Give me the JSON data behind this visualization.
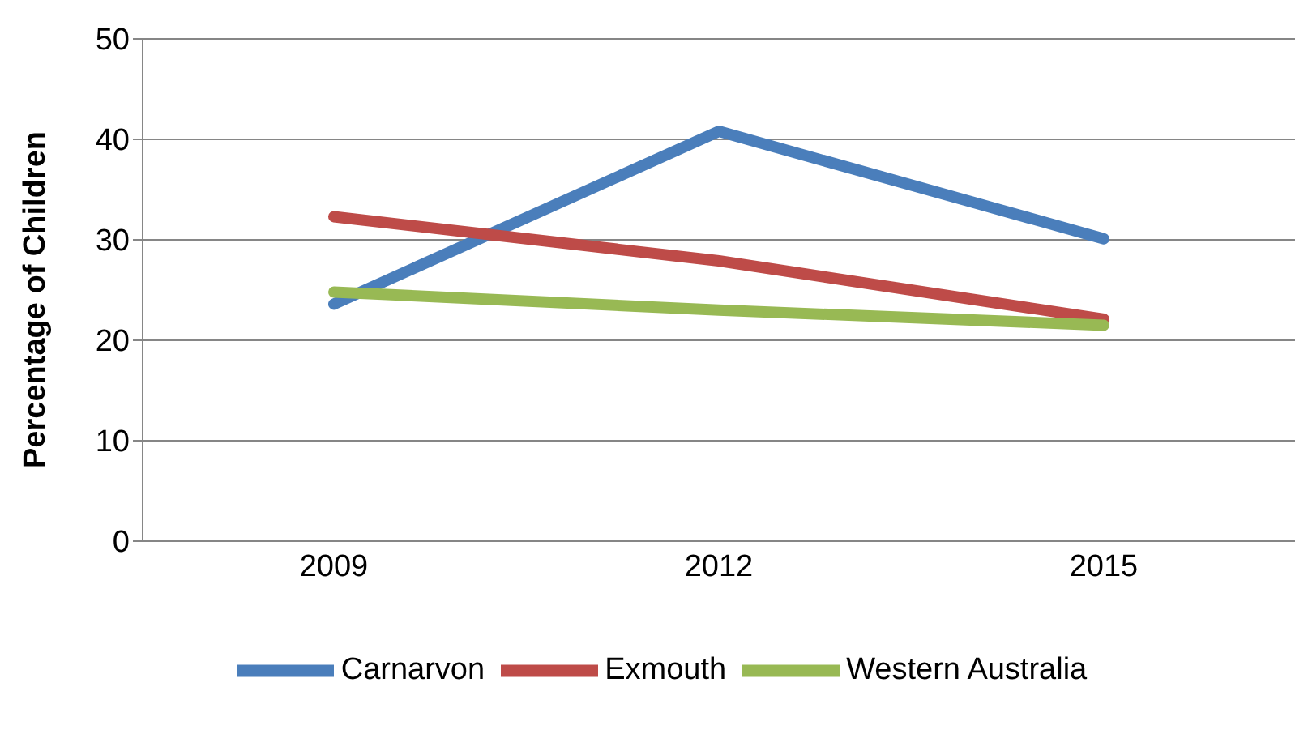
{
  "chart_data": {
    "type": "line",
    "ylabel": "Percentage of Children",
    "categories": [
      "2009",
      "2012",
      "2015"
    ],
    "series": [
      {
        "name": "Carnarvon",
        "color": "#4a7ebb",
        "values": [
          23.6,
          40.8,
          30.1
        ]
      },
      {
        "name": "Exmouth",
        "color": "#be4b48",
        "values": [
          32.3,
          27.9,
          22.1
        ]
      },
      {
        "name": "Western Australia",
        "color": "#98b954",
        "values": [
          24.8,
          23.0,
          21.5
        ]
      }
    ],
    "ylim": [
      0,
      50
    ],
    "yticks": [
      0,
      10,
      20,
      30,
      40,
      50
    ],
    "grid": "y",
    "legend": "bottom",
    "marker": "none",
    "line_style": "solid"
  }
}
